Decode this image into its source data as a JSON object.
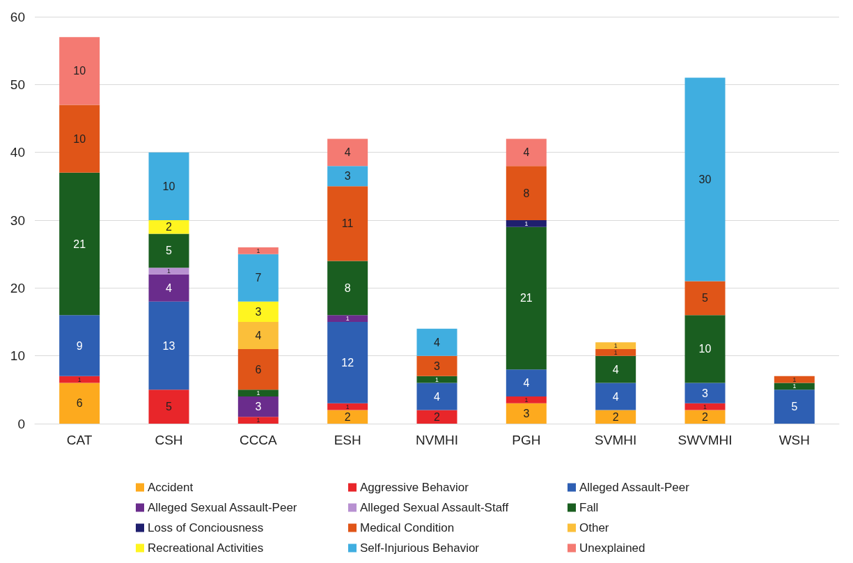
{
  "chart_data": {
    "type": "bar",
    "stacked": true,
    "data_labels": true,
    "grid": "y",
    "legend": "bottom",
    "categories": [
      "CAT",
      "CSH",
      "CCCA",
      "ESH",
      "NVMHI",
      "PGH",
      "SVMHI",
      "SWVMHI",
      "WSH"
    ],
    "ylim": [
      0,
      60
    ],
    "yticks": [
      0,
      10,
      20,
      30,
      40,
      50,
      60
    ],
    "series": [
      {
        "name": "Accident",
        "color": "#fdaa1e",
        "values": [
          6,
          null,
          null,
          2,
          null,
          3,
          2,
          2,
          null
        ]
      },
      {
        "name": "Aggressive Behavior",
        "color": "#e8262a",
        "values": [
          1,
          5,
          1,
          1,
          2,
          1,
          null,
          1,
          null
        ]
      },
      {
        "name": "Alleged Assault-Peer",
        "color": "#2e5fb3",
        "values": [
          9,
          13,
          null,
          12,
          4,
          4,
          4,
          3,
          5
        ]
      },
      {
        "name": "Alleged Sexual Assault-Peer",
        "color": "#6a2c8c",
        "values": [
          null,
          4,
          3,
          1,
          null,
          null,
          null,
          null,
          null
        ]
      },
      {
        "name": "Alleged Sexual Assault-Staff",
        "color": "#b891d1",
        "values": [
          null,
          1,
          null,
          null,
          null,
          null,
          null,
          null,
          null
        ]
      },
      {
        "name": "Fall",
        "color": "#1a5e20",
        "values": [
          21,
          5,
          1,
          8,
          1,
          21,
          4,
          10,
          1
        ]
      },
      {
        "name": "Loss of Conciousness",
        "color": "#1f1f6e",
        "values": [
          null,
          null,
          null,
          null,
          null,
          1,
          null,
          null,
          null
        ]
      },
      {
        "name": "Medical Condition",
        "color": "#e05518",
        "values": [
          10,
          null,
          6,
          11,
          3,
          8,
          1,
          5,
          1
        ]
      },
      {
        "name": "Other",
        "color": "#fbbf3a",
        "values": [
          null,
          null,
          4,
          null,
          null,
          null,
          1,
          null,
          null
        ]
      },
      {
        "name": "Recreational Activities",
        "color": "#fff520",
        "values": [
          null,
          2,
          3,
          null,
          null,
          null,
          null,
          null,
          null
        ]
      },
      {
        "name": "Self-Injurious Behavior",
        "color": "#40aee0",
        "values": [
          null,
          10,
          7,
          3,
          4,
          null,
          null,
          30,
          null
        ]
      },
      {
        "name": "Unexplained",
        "color": "#f47a72",
        "values": [
          10,
          null,
          1,
          4,
          null,
          4,
          null,
          null,
          null
        ]
      }
    ]
  }
}
